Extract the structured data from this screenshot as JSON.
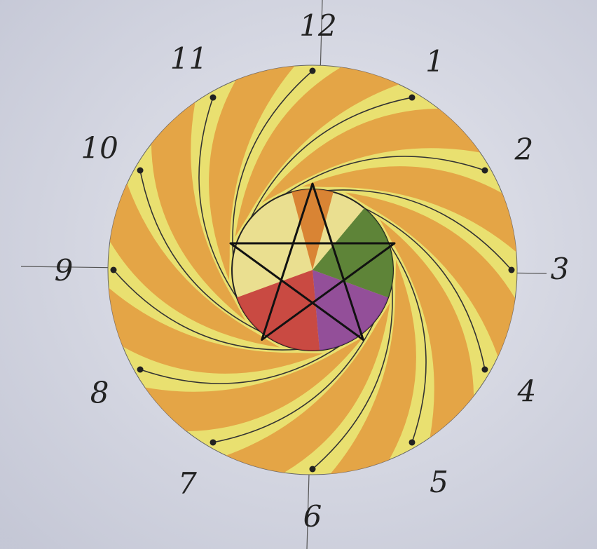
{
  "clock": {
    "labels": [
      "12",
      "1",
      "2",
      "3",
      "4",
      "5",
      "6",
      "7",
      "8",
      "9",
      "10",
      "11"
    ]
  }
}
